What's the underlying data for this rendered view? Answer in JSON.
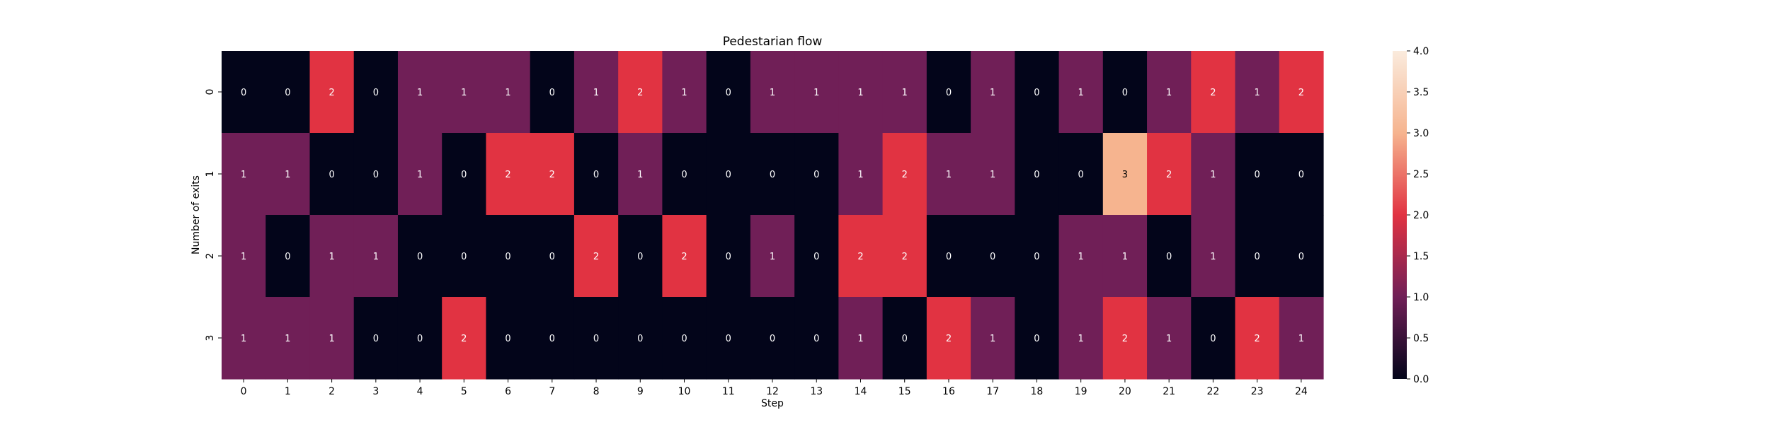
{
  "chart_data": {
    "type": "heatmap",
    "title": "Pedestarian flow",
    "xlabel": "Step",
    "ylabel": "Number of exits",
    "x": [
      "0",
      "1",
      "2",
      "3",
      "4",
      "5",
      "6",
      "7",
      "8",
      "9",
      "10",
      "11",
      "12",
      "13",
      "14",
      "15",
      "16",
      "17",
      "18",
      "19",
      "20",
      "21",
      "22",
      "23",
      "24"
    ],
    "y": [
      "0",
      "1",
      "2",
      "3"
    ],
    "values": [
      [
        0,
        0,
        2,
        0,
        1,
        1,
        1,
        0,
        1,
        2,
        1,
        0,
        1,
        1,
        1,
        1,
        0,
        1,
        0,
        1,
        0,
        1,
        2,
        1,
        2
      ],
      [
        1,
        1,
        0,
        0,
        1,
        0,
        2,
        2,
        0,
        1,
        0,
        0,
        0,
        0,
        1,
        2,
        1,
        1,
        0,
        0,
        3,
        2,
        1,
        0,
        0
      ],
      [
        1,
        0,
        1,
        1,
        0,
        0,
        0,
        0,
        2,
        0,
        2,
        0,
        1,
        0,
        2,
        2,
        0,
        0,
        0,
        1,
        1,
        0,
        1,
        0,
        0
      ],
      [
        1,
        1,
        1,
        0,
        0,
        2,
        0,
        0,
        0,
        0,
        0,
        0,
        0,
        0,
        1,
        0,
        2,
        1,
        0,
        1,
        2,
        1,
        0,
        2,
        1
      ]
    ],
    "vmin": 0,
    "vmax": 4,
    "colorbar_ticks": [
      "0.0",
      "0.5",
      "1.0",
      "1.5",
      "2.0",
      "2.5",
      "3.0",
      "3.5",
      "4.0"
    ],
    "annotated": true,
    "colormap": "rocket",
    "colormap_stops": [
      "#03051a",
      "#701f57",
      "#e13342",
      "#f6b48f",
      "#faebdd"
    ]
  }
}
